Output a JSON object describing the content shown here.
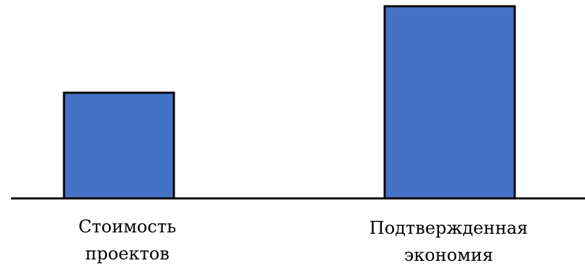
{
  "chart_data": {
    "type": "bar",
    "categories": [
      "Стоимость проектов",
      "Подтвержденная экономия"
    ],
    "category_lines": [
      [
        "Стоимость",
        "проектов"
      ],
      [
        "Подтвержденная",
        "экономия"
      ]
    ],
    "values": [
      55,
      100
    ],
    "title": "",
    "xlabel": "",
    "ylabel": "",
    "ylim": [
      0,
      100
    ],
    "grid": false,
    "legend": "none",
    "bar_color": "#4472c4",
    "edge_color": "#000000"
  }
}
